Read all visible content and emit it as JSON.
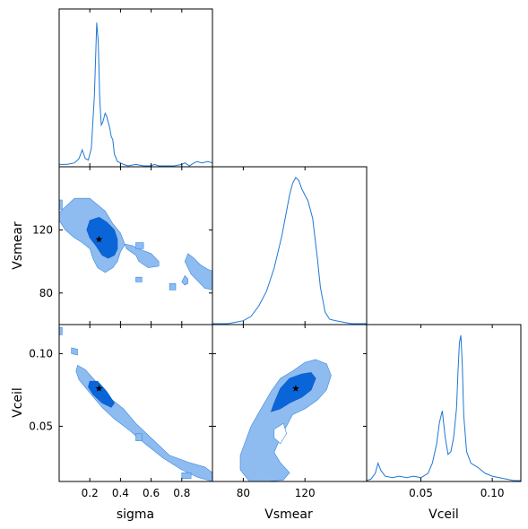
{
  "chart_data": {
    "type": "corner",
    "parameters": [
      {
        "key": "sigma",
        "label": "sigma",
        "range": [
          0.0,
          1.0
        ],
        "ticks": [
          0.2,
          0.4,
          0.6,
          0.8
        ],
        "tick_labels": [
          "0.2",
          "0.4",
          "0.6",
          "0.8"
        ]
      },
      {
        "key": "Vsmear",
        "label": "Vsmear",
        "range": [
          60,
          160
        ],
        "ticks": [
          80,
          120
        ],
        "tick_labels": [
          "80",
          "120"
        ]
      },
      {
        "key": "Vceil",
        "label": "Vceil",
        "range": [
          0.012,
          0.12
        ],
        "ticks": [
          0.05,
          0.1
        ],
        "tick_labels": [
          "0.05",
          "0.10"
        ]
      }
    ],
    "best_fit": {
      "sigma": 0.26,
      "Vsmear": 114,
      "Vceil": 0.076
    },
    "marginals": {
      "sigma": {
        "x": [
          0.0,
          0.05,
          0.1,
          0.13,
          0.15,
          0.17,
          0.19,
          0.21,
          0.23,
          0.245,
          0.255,
          0.265,
          0.275,
          0.285,
          0.3,
          0.31,
          0.32,
          0.33,
          0.34,
          0.35,
          0.36,
          0.38,
          0.4,
          0.42,
          0.45,
          0.5,
          0.55,
          0.6,
          0.62,
          0.65,
          0.7,
          0.75,
          0.8,
          0.82,
          0.85,
          0.88,
          0.9,
          0.93,
          0.97,
          1.0
        ],
        "y": [
          0.01,
          0.01,
          0.02,
          0.05,
          0.11,
          0.05,
          0.04,
          0.12,
          0.48,
          0.98,
          0.85,
          0.45,
          0.28,
          0.3,
          0.36,
          0.34,
          0.3,
          0.26,
          0.2,
          0.18,
          0.08,
          0.03,
          0.02,
          0.01,
          0.0,
          0.01,
          0.0,
          0.0,
          0.01,
          0.0,
          0.0,
          0.0,
          0.01,
          0.02,
          0.0,
          0.02,
          0.03,
          0.02,
          0.03,
          0.02
        ]
      },
      "Vsmear": {
        "x": [
          60,
          70,
          75,
          80,
          85,
          90,
          95,
          100,
          105,
          110,
          112,
          114,
          116,
          118,
          120,
          122,
          125,
          128,
          130,
          133,
          136,
          140,
          145,
          150,
          155,
          160
        ],
        "y": [
          0.0,
          0.0,
          0.01,
          0.02,
          0.05,
          0.12,
          0.22,
          0.38,
          0.6,
          0.88,
          0.96,
          1.0,
          0.98,
          0.92,
          0.88,
          0.84,
          0.72,
          0.45,
          0.25,
          0.08,
          0.03,
          0.02,
          0.01,
          0.0,
          0.0,
          0.0
        ],
        "ymax": 1.0
      },
      "Vceil": {
        "x": [
          0.012,
          0.015,
          0.018,
          0.02,
          0.022,
          0.025,
          0.03,
          0.035,
          0.04,
          0.045,
          0.05,
          0.055,
          0.058,
          0.061,
          0.063,
          0.065,
          0.067,
          0.069,
          0.071,
          0.073,
          0.075,
          0.076,
          0.077,
          0.078,
          0.079,
          0.08,
          0.082,
          0.085,
          0.09,
          0.095,
          0.1,
          0.105,
          0.11,
          0.115,
          0.12
        ],
        "y": [
          0.0,
          0.01,
          0.05,
          0.12,
          0.07,
          0.03,
          0.02,
          0.03,
          0.02,
          0.03,
          0.02,
          0.05,
          0.12,
          0.25,
          0.4,
          0.48,
          0.3,
          0.18,
          0.2,
          0.3,
          0.5,
          0.75,
          0.95,
          1.0,
          0.8,
          0.45,
          0.2,
          0.12,
          0.09,
          0.05,
          0.03,
          0.02,
          0.01,
          0.0,
          0.0
        ]
      }
    },
    "joint_contours": {
      "Vsmear_vs_sigma": {
        "outer": [
          [
            [
              0.0,
              131
            ],
            [
              0.1,
              140
            ],
            [
              0.2,
              140
            ],
            [
              0.3,
              132
            ],
            [
              0.35,
              124
            ],
            [
              0.4,
              118
            ],
            [
              0.44,
              108
            ],
            [
              0.5,
              104
            ],
            [
              0.52,
              100
            ],
            [
              0.58,
              96
            ],
            [
              0.65,
              97
            ],
            [
              0.65,
              100
            ],
            [
              0.6,
              105
            ],
            [
              0.52,
              108
            ],
            [
              0.48,
              110
            ],
            [
              0.43,
              111
            ],
            [
              0.4,
              106
            ],
            [
              0.38,
              100
            ],
            [
              0.35,
              96
            ],
            [
              0.3,
              93
            ],
            [
              0.25,
              96
            ],
            [
              0.22,
              102
            ],
            [
              0.2,
              108
            ],
            [
              0.15,
              112
            ],
            [
              0.1,
              115
            ],
            [
              0.04,
              120
            ],
            [
              0.0,
              126
            ]
          ],
          [
            [
              0.84,
              105
            ],
            [
              0.88,
              102
            ],
            [
              0.92,
              98
            ],
            [
              0.97,
              95
            ],
            [
              1.0,
              94
            ],
            [
              1.0,
              82
            ],
            [
              0.95,
              83
            ],
            [
              0.9,
              88
            ],
            [
              0.86,
              92
            ],
            [
              0.84,
              96
            ],
            [
              0.82,
              100
            ]
          ],
          [
            [
              0.82,
              91
            ],
            [
              0.84,
              89
            ],
            [
              0.84,
              86
            ],
            [
              0.82,
              85
            ],
            [
              0.8,
              87
            ]
          ],
          [
            [
              0.5,
              90
            ],
            [
              0.54,
              90
            ],
            [
              0.54,
              87
            ],
            [
              0.5,
              87
            ]
          ],
          [
            [
              0.72,
              86
            ],
            [
              0.76,
              86
            ],
            [
              0.76,
              82
            ],
            [
              0.72,
              82
            ]
          ],
          [
            [
              0.5,
              112
            ],
            [
              0.55,
              112
            ],
            [
              0.55,
              108
            ],
            [
              0.5,
              108
            ]
          ],
          [
            [
              0.0,
              139
            ],
            [
              0.02,
              139
            ],
            [
              0.02,
              133
            ],
            [
              0.0,
              133
            ]
          ]
        ],
        "inner": [
          [
            [
              0.2,
              126
            ],
            [
              0.26,
              128
            ],
            [
              0.31,
              125
            ],
            [
              0.36,
              120
            ],
            [
              0.38,
              114
            ],
            [
              0.38,
              108
            ],
            [
              0.36,
              104
            ],
            [
              0.32,
              102
            ],
            [
              0.28,
              104
            ],
            [
              0.24,
              110
            ],
            [
              0.2,
              115
            ],
            [
              0.18,
              120
            ]
          ]
        ]
      },
      "Vceil_vs_sigma": {
        "outer": [
          [
            [
              0.12,
              0.092
            ],
            [
              0.17,
              0.089
            ],
            [
              0.23,
              0.082
            ],
            [
              0.3,
              0.072
            ],
            [
              0.36,
              0.067
            ],
            [
              0.42,
              0.062
            ],
            [
              0.5,
              0.052
            ],
            [
              0.6,
              0.042
            ],
            [
              0.72,
              0.03
            ],
            [
              0.85,
              0.025
            ],
            [
              0.95,
              0.022
            ],
            [
              1.0,
              0.018
            ],
            [
              1.0,
              0.012
            ],
            [
              0.9,
              0.015
            ],
            [
              0.8,
              0.02
            ],
            [
              0.68,
              0.028
            ],
            [
              0.56,
              0.038
            ],
            [
              0.45,
              0.048
            ],
            [
              0.36,
              0.055
            ],
            [
              0.28,
              0.063
            ],
            [
              0.2,
              0.073
            ],
            [
              0.13,
              0.082
            ],
            [
              0.11,
              0.088
            ]
          ],
          [
            [
              0.08,
              0.104
            ],
            [
              0.12,
              0.103
            ],
            [
              0.12,
              0.099
            ],
            [
              0.08,
              0.1
            ]
          ],
          [
            [
              0.5,
              0.045
            ],
            [
              0.54,
              0.045
            ],
            [
              0.54,
              0.04
            ],
            [
              0.5,
              0.04
            ]
          ],
          [
            [
              0.8,
              0.018
            ],
            [
              0.86,
              0.018
            ],
            [
              0.86,
              0.014
            ],
            [
              0.8,
              0.014
            ]
          ],
          [
            [
              0.0,
              0.118
            ],
            [
              0.02,
              0.118
            ],
            [
              0.02,
              0.113
            ],
            [
              0.0,
              0.113
            ]
          ]
        ],
        "inner": [
          [
            [
              0.2,
              0.081
            ],
            [
              0.25,
              0.081
            ],
            [
              0.31,
              0.074
            ],
            [
              0.36,
              0.066
            ],
            [
              0.34,
              0.063
            ],
            [
              0.28,
              0.066
            ],
            [
              0.22,
              0.072
            ],
            [
              0.19,
              0.077
            ]
          ]
        ]
      },
      "Vceil_vs_Vsmear": {
        "outer": [
          [
            [
              78,
              0.03
            ],
            [
              85,
              0.05
            ],
            [
              92,
              0.063
            ],
            [
              98,
              0.074
            ],
            [
              104,
              0.083
            ],
            [
              112,
              0.088
            ],
            [
              120,
              0.094
            ],
            [
              127,
              0.096
            ],
            [
              134,
              0.093
            ],
            [
              137,
              0.085
            ],
            [
              134,
              0.075
            ],
            [
              128,
              0.068
            ],
            [
              120,
              0.062
            ],
            [
              112,
              0.058
            ],
            [
              108,
              0.05
            ],
            [
              104,
              0.042
            ],
            [
              100,
              0.032
            ],
            [
              104,
              0.025
            ],
            [
              110,
              0.018
            ],
            [
              106,
              0.013
            ],
            [
              95,
              0.012
            ],
            [
              84,
              0.012
            ],
            [
              78,
              0.02
            ]
          ]
        ],
        "inner": [
          [
            [
              100,
              0.066
            ],
            [
              104,
              0.076
            ],
            [
              110,
              0.083
            ],
            [
              118,
              0.086
            ],
            [
              124,
              0.087
            ],
            [
              127,
              0.083
            ],
            [
              124,
              0.075
            ],
            [
              118,
              0.07
            ],
            [
              110,
              0.066
            ],
            [
              104,
              0.062
            ],
            [
              98,
              0.06
            ]
          ]
        ],
        "holes": [
          [
            [
              100,
              0.048
            ],
            [
              106,
              0.052
            ],
            [
              108,
              0.045
            ],
            [
              104,
              0.038
            ],
            [
              100,
              0.042
            ]
          ]
        ]
      }
    }
  }
}
